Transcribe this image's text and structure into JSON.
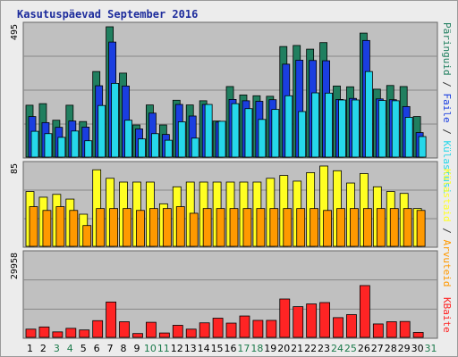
{
  "chart_data": {
    "title": "Kasutuspäevad September 2016",
    "type": "bar",
    "categories": [
      "1",
      "2",
      "3",
      "4",
      "5",
      "6",
      "7",
      "8",
      "9",
      "10",
      "11",
      "12",
      "13",
      "14",
      "15",
      "16",
      "17",
      "18",
      "19",
      "20",
      "21",
      "22",
      "23",
      "24",
      "25",
      "26",
      "27",
      "28",
      "29",
      "30",
      "31"
    ],
    "weekend_days": [
      "3",
      "4",
      "10",
      "11",
      "17",
      "18",
      "24",
      "25",
      "31"
    ],
    "grid": true,
    "panels": [
      {
        "name": "hits",
        "ytick": "495",
        "ymax": 495,
        "series": [
          {
            "name": "Päringuid",
            "color": "#207f5f",
            "values": [
              197,
              203,
              140,
              197,
              135,
              325,
              495,
              319,
              122,
              198,
              122,
              216,
              198,
              214,
              137,
              268,
              236,
              233,
              231,
              420,
              424,
              410,
              435,
              270,
              267,
              471,
              258,
              272,
              268,
              154,
              null
            ]
          },
          {
            "name": "Faile",
            "color": "#1a3ee0",
            "values": [
              154,
              131,
              113,
              137,
              114,
              271,
              437,
              270,
              107,
              167,
              86,
              200,
              156,
              200,
              133,
              219,
              214,
              212,
              218,
              353,
              368,
              367,
              366,
              219,
              223,
              443,
              221,
              218,
              192,
              93,
              null
            ]
          },
          {
            "name": "Külastusi",
            "color": "#26d7ea",
            "values": [
              98,
              89,
              75,
              99,
              62,
              196,
              280,
              140,
              69,
              89,
              64,
              134,
              72,
              200,
              136,
              203,
              184,
              143,
              181,
              233,
              173,
              244,
              243,
              217,
              217,
              325,
              215,
              214,
              151,
              78,
              null
            ]
          }
        ]
      },
      {
        "name": "visits",
        "ytick": "85",
        "ymax": 85,
        "series": [
          {
            "name": "Külastaid",
            "color": "#ffff22",
            "values": [
              58,
              52,
              55,
              50,
              34,
              81,
              72,
              68,
              68,
              68,
              45,
              63,
              68,
              68,
              68,
              68,
              68,
              68,
              72,
              75,
              69,
              78,
              85,
              80,
              67,
              77,
              63,
              58,
              56,
              40,
              null
            ]
          },
          {
            "name": "Arvuteid",
            "color": "#ff9900",
            "values": [
              42,
              38,
              42,
              38,
              22,
              40,
              40,
              40,
              38,
              40,
              40,
              42,
              35,
              40,
              40,
              40,
              40,
              40,
              40,
              40,
              40,
              40,
              38,
              40,
              40,
              40,
              40,
              40,
              40,
              38,
              null
            ]
          }
        ]
      },
      {
        "name": "bytes",
        "ytick": "29958",
        "ymax": 29958,
        "series": [
          {
            "name": "KBaite",
            "color": "#ff2424",
            "values": [
              3000,
              3800,
              2000,
              3300,
              2700,
              6100,
              12900,
              5700,
              1400,
              5500,
              1600,
              4400,
              3000,
              5300,
              7000,
              5200,
              7800,
              6200,
              6200,
              14000,
              11200,
              12200,
              12700,
              7200,
              8300,
              18900,
              4900,
              5700,
              5800,
              1800,
              null
            ]
          }
        ]
      }
    ],
    "right_labels": [
      {
        "key": "top",
        "parts": [
          {
            "text": "Päringuid",
            "color": "#207f5f"
          },
          {
            "text": " / ",
            "color": "#333333"
          },
          {
            "text": "Faile",
            "color": "#1a3ee0"
          },
          {
            "text": " / ",
            "color": "#333333"
          },
          {
            "text": "Külastusi",
            "color": "#26d7ea"
          }
        ]
      },
      {
        "key": "middle",
        "parts": [
          {
            "text": "Külastaid",
            "color": "#ffff22"
          },
          {
            "text": " / ",
            "color": "#333333"
          },
          {
            "text": "Arvuteid",
            "color": "#ff9900"
          }
        ]
      },
      {
        "key": "bottom",
        "parts": [
          {
            "text": "KBaite",
            "color": "#ff2424"
          }
        ]
      }
    ],
    "colors": {
      "weekday_tick": "#000000",
      "weekend_tick": "#1a7a4a",
      "title": "#1d2c9c",
      "panel_background": "#c0c0c0",
      "frame_background": "#ececec"
    }
  }
}
